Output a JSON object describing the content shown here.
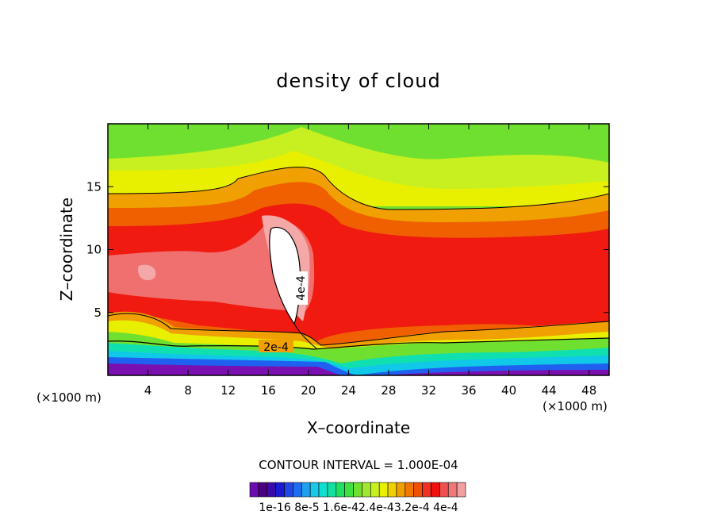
{
  "chart_data": {
    "type": "heatmap",
    "title": "density of cloud",
    "xlabel": "X–coordinate",
    "ylabel": "Z–coordinate",
    "x_unit_left": "(×1000 m)",
    "x_unit_right": "(×1000 m)",
    "xlim": [
      0,
      50
    ],
    "ylim": [
      0,
      20
    ],
    "xticks": [
      4,
      8,
      12,
      16,
      20,
      24,
      28,
      32,
      36,
      40,
      44,
      48
    ],
    "yticks": [
      5,
      10,
      15
    ],
    "contour_labels": [
      {
        "text": "2e-4",
        "x": 17,
        "z": 2.2
      },
      {
        "text": "4e-4",
        "x": 19,
        "z": 7.2
      }
    ],
    "contour_interval_text": "CONTOUR INTERVAL = 1.000E-04",
    "colorbar_labels_text": "1e-16 8e-5 1.6e-42.4e-43.2e-4 4e-4",
    "colorbar_colors": [
      "#6a0dad",
      "#4b0082",
      "#3a0aa8",
      "#1a1ad0",
      "#1f48e6",
      "#1f6cf0",
      "#1ea0f0",
      "#18c8e8",
      "#10e0d0",
      "#10e0a0",
      "#20e060",
      "#40e040",
      "#70e030",
      "#a0e830",
      "#c8f020",
      "#e8f000",
      "#f0d000",
      "#f0a000",
      "#f07800",
      "#f05000",
      "#f03020",
      "#f01010",
      "#f05050",
      "#f07878",
      "#f0a0a0"
    ],
    "band_colors": {
      "purple": "#7a10b0",
      "deep_blue": "#2020d0",
      "blue": "#2060f0",
      "cyan": "#10c8e8",
      "teal": "#10e0b0",
      "green": "#30d830",
      "yellow_green": "#b8e820",
      "yellow": "#e8f000",
      "orange": "#f0a000",
      "dark_orange": "#f06000",
      "red": "#f01a10",
      "pink": "#f07070",
      "light_pink": "#f4a8a8",
      "white": "#ffffff"
    }
  }
}
